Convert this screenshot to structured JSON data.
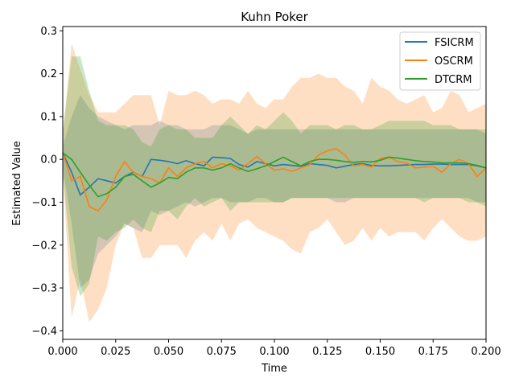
{
  "chart_data": {
    "type": "line",
    "title": "Kuhn Poker",
    "xlabel": "Time",
    "ylabel": "Estimated Value",
    "xlim": [
      0,
      0.2
    ],
    "ylim": [
      -0.42,
      0.31
    ],
    "xticks": [
      0,
      0.025,
      0.05,
      0.075,
      0.1,
      0.125,
      0.15,
      0.175,
      0.2
    ],
    "xtick_labels": [
      "0.000",
      "0.025",
      "0.050",
      "0.075",
      "0.100",
      "0.125",
      "0.150",
      "0.175",
      "0.200"
    ],
    "yticks": [
      -0.4,
      -0.3,
      -0.2,
      -0.1,
      0.0,
      0.1,
      0.2,
      0.3
    ],
    "ytick_labels": [
      "−0.4",
      "−0.3",
      "−0.2",
      "−0.1",
      "0.0",
      "0.1",
      "0.2",
      "0.3"
    ],
    "grid": false,
    "legend_position": "top-right",
    "x": [
      0,
      0.0042,
      0.0083,
      0.0125,
      0.0167,
      0.0208,
      0.025,
      0.0292,
      0.0333,
      0.0375,
      0.0417,
      0.0458,
      0.05,
      0.0542,
      0.0583,
      0.0625,
      0.0667,
      0.0708,
      0.075,
      0.0792,
      0.0833,
      0.0875,
      0.0917,
      0.0958,
      0.1,
      0.1042,
      0.1083,
      0.1125,
      0.1167,
      0.1208,
      0.125,
      0.1292,
      0.1333,
      0.1375,
      0.1417,
      0.1458,
      0.15,
      0.1542,
      0.1583,
      0.1625,
      0.1667,
      0.1708,
      0.175,
      0.1792,
      0.1833,
      0.1875,
      0.1917,
      0.1958,
      0.2
    ],
    "series": [
      {
        "name": "FSICRM",
        "color": "#1f77b4",
        "band_color": "#1f77b4",
        "values": [
          0.015,
          -0.03,
          -0.083,
          -0.065,
          -0.045,
          -0.05,
          -0.055,
          -0.04,
          -0.03,
          -0.04,
          0.0,
          -0.002,
          -0.005,
          -0.01,
          -0.003,
          -0.01,
          -0.015,
          0.005,
          0.004,
          0.002,
          -0.012,
          -0.018,
          -0.005,
          -0.01,
          -0.015,
          -0.012,
          -0.014,
          -0.016,
          -0.01,
          -0.012,
          -0.014,
          -0.02,
          -0.016,
          -0.012,
          -0.01,
          -0.014,
          -0.015,
          -0.015,
          -0.014,
          -0.013,
          -0.012,
          -0.012,
          -0.011,
          -0.011,
          -0.012,
          -0.012,
          -0.012,
          -0.015,
          -0.02
        ],
        "lower": [
          -0.02,
          -0.15,
          -0.3,
          -0.28,
          -0.22,
          -0.2,
          -0.18,
          -0.15,
          -0.16,
          -0.17,
          -0.12,
          -0.13,
          -0.12,
          -0.11,
          -0.1,
          -0.11,
          -0.1,
          -0.09,
          -0.09,
          -0.1,
          -0.1,
          -0.1,
          -0.09,
          -0.09,
          -0.1,
          -0.1,
          -0.09,
          -0.09,
          -0.09,
          -0.09,
          -0.09,
          -0.1,
          -0.1,
          -0.09,
          -0.09,
          -0.09,
          -0.09,
          -0.09,
          -0.09,
          -0.09,
          -0.09,
          -0.09,
          -0.09,
          -0.09,
          -0.09,
          -0.09,
          -0.09,
          -0.1,
          -0.1
        ],
        "upper": [
          0.03,
          0.1,
          0.15,
          0.12,
          0.1,
          0.09,
          0.08,
          0.07,
          0.08,
          0.08,
          0.08,
          0.09,
          0.08,
          0.08,
          0.07,
          0.07,
          0.07,
          0.08,
          0.08,
          0.08,
          0.07,
          0.06,
          0.07,
          0.07,
          0.07,
          0.07,
          0.07,
          0.07,
          0.07,
          0.07,
          0.07,
          0.07,
          0.07,
          0.07,
          0.07,
          0.07,
          0.07,
          0.07,
          0.07,
          0.07,
          0.07,
          0.07,
          0.07,
          0.07,
          0.07,
          0.07,
          0.07,
          0.07,
          0.06
        ]
      },
      {
        "name": "OSCRM",
        "color": "#ff7f0e",
        "band_color": "#ff7f0e",
        "values": [
          0.015,
          -0.05,
          -0.04,
          -0.11,
          -0.12,
          -0.095,
          -0.04,
          -0.005,
          -0.03,
          -0.04,
          -0.045,
          -0.055,
          -0.02,
          -0.04,
          -0.02,
          -0.01,
          -0.005,
          -0.02,
          -0.01,
          -0.015,
          -0.025,
          -0.01,
          0.007,
          -0.01,
          -0.025,
          -0.022,
          -0.028,
          -0.02,
          -0.012,
          0.01,
          0.02,
          0.025,
          0.01,
          -0.015,
          -0.012,
          -0.018,
          0.002,
          0.006,
          -0.005,
          -0.008,
          -0.02,
          -0.018,
          -0.016,
          -0.03,
          -0.01,
          0.0,
          -0.01,
          -0.04,
          -0.02
        ],
        "lower": [
          -0.03,
          -0.37,
          -0.28,
          -0.38,
          -0.35,
          -0.3,
          -0.2,
          -0.15,
          -0.16,
          -0.23,
          -0.23,
          -0.2,
          -0.2,
          -0.2,
          -0.23,
          -0.19,
          -0.17,
          -0.19,
          -0.15,
          -0.19,
          -0.15,
          -0.14,
          -0.16,
          -0.17,
          -0.18,
          -0.19,
          -0.21,
          -0.22,
          -0.17,
          -0.16,
          -0.14,
          -0.17,
          -0.2,
          -0.19,
          -0.16,
          -0.19,
          -0.16,
          -0.18,
          -0.17,
          -0.17,
          -0.17,
          -0.19,
          -0.16,
          -0.14,
          -0.16,
          -0.18,
          -0.19,
          -0.19,
          -0.18
        ],
        "upper": [
          0.06,
          0.27,
          0.21,
          0.15,
          0.11,
          0.11,
          0.11,
          0.13,
          0.15,
          0.15,
          0.15,
          0.08,
          0.16,
          0.15,
          0.15,
          0.16,
          0.15,
          0.13,
          0.14,
          0.14,
          0.13,
          0.16,
          0.13,
          0.12,
          0.14,
          0.14,
          0.17,
          0.19,
          0.19,
          0.2,
          0.19,
          0.19,
          0.17,
          0.16,
          0.13,
          0.19,
          0.17,
          0.16,
          0.14,
          0.13,
          0.14,
          0.15,
          0.11,
          0.12,
          0.16,
          0.15,
          0.11,
          0.12,
          0.13
        ]
      },
      {
        "name": "DTCRM",
        "color": "#2ca02c",
        "band_color": "#2ca02c",
        "values": [
          0.015,
          0.0,
          -0.03,
          -0.06,
          -0.087,
          -0.08,
          -0.065,
          -0.04,
          -0.035,
          -0.05,
          -0.065,
          -0.055,
          -0.042,
          -0.045,
          -0.03,
          -0.02,
          -0.02,
          -0.025,
          -0.02,
          -0.01,
          -0.02,
          -0.028,
          -0.022,
          -0.015,
          -0.005,
          0.005,
          -0.005,
          -0.015,
          -0.005,
          0.0,
          0.0,
          -0.002,
          -0.005,
          -0.007,
          -0.005,
          -0.006,
          -0.002,
          0.005,
          0.003,
          0.0,
          -0.003,
          -0.005,
          -0.006,
          -0.008,
          -0.008,
          -0.008,
          -0.01,
          -0.014,
          -0.02
        ],
        "lower": [
          -0.03,
          -0.25,
          -0.32,
          -0.29,
          -0.18,
          -0.19,
          -0.17,
          -0.16,
          -0.14,
          -0.16,
          -0.17,
          -0.12,
          -0.12,
          -0.14,
          -0.11,
          -0.09,
          -0.11,
          -0.1,
          -0.09,
          -0.12,
          -0.1,
          -0.1,
          -0.1,
          -0.1,
          -0.1,
          -0.1,
          -0.09,
          -0.09,
          -0.09,
          -0.09,
          -0.09,
          -0.09,
          -0.09,
          -0.09,
          -0.09,
          -0.09,
          -0.09,
          -0.09,
          -0.09,
          -0.09,
          -0.09,
          -0.1,
          -0.09,
          -0.09,
          -0.09,
          -0.09,
          -0.1,
          -0.1,
          -0.11
        ],
        "upper": [
          0.06,
          0.24,
          0.24,
          0.16,
          0.09,
          0.08,
          0.08,
          0.08,
          0.07,
          0.04,
          0.03,
          0.07,
          0.08,
          0.07,
          0.07,
          0.05,
          0.05,
          0.05,
          0.08,
          0.1,
          0.08,
          0.06,
          0.08,
          0.07,
          0.09,
          0.11,
          0.09,
          0.06,
          0.08,
          0.08,
          0.08,
          0.07,
          0.08,
          0.08,
          0.07,
          0.07,
          0.08,
          0.09,
          0.09,
          0.09,
          0.09,
          0.09,
          0.08,
          0.08,
          0.08,
          0.07,
          0.07,
          0.07,
          0.07
        ]
      }
    ]
  }
}
